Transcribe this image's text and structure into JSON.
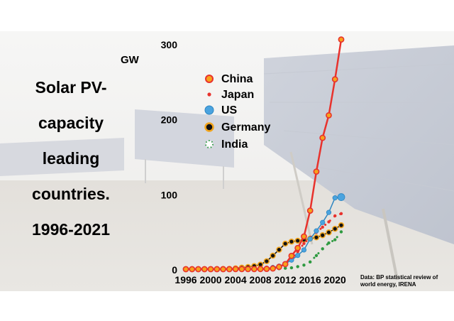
{
  "title_lines": [
    "Solar PV-",
    "capacity",
    "leading",
    "countries.",
    "1996-2021"
  ],
  "unit": "GW",
  "source": "Data:  BP statistical review of world energy, IRENA",
  "chart_data": {
    "type": "line",
    "title": "Solar PV-capacity leading countries. 1996-2021",
    "ylabel": "GW",
    "xlabel": "",
    "xlim": [
      1996,
      2021
    ],
    "ylim": [
      0,
      300
    ],
    "x_ticks": [
      "1996",
      "2000",
      "2004",
      "2008",
      "2012",
      "2016",
      "2020"
    ],
    "y_ticks": [
      "0",
      "100",
      "200",
      "300"
    ],
    "grid": false,
    "legend": "top-left",
    "x": [
      1996,
      1997,
      1998,
      1999,
      2000,
      2001,
      2002,
      2003,
      2004,
      2005,
      2006,
      2007,
      2008,
      2009,
      2010,
      2011,
      2012,
      2013,
      2014,
      2015,
      2016,
      2017,
      2018,
      2019,
      2020,
      2021
    ],
    "series": [
      {
        "name": "China",
        "color": "#e8322d",
        "fill": "#f7a21b",
        "values": [
          0,
          0,
          0,
          0,
          0,
          0,
          0,
          0,
          0.1,
          0.1,
          0.1,
          0.1,
          0.2,
          0.4,
          0.9,
          3,
          6.7,
          17.7,
          28.2,
          43.5,
          78,
          130,
          175,
          205,
          253,
          306
        ]
      },
      {
        "name": "Japan",
        "color": "#e8322d",
        "fill": "#ffffff",
        "values": [
          0.1,
          0.1,
          0.1,
          0.2,
          0.3,
          0.4,
          0.6,
          0.9,
          1.1,
          1.4,
          1.7,
          1.9,
          2.1,
          2.6,
          3.6,
          4.9,
          6.6,
          13.6,
          23.3,
          34.2,
          42,
          49,
          56,
          63,
          71,
          74
        ]
      },
      {
        "name": "US",
        "color": "#2e86c1",
        "fill": "#4aa3df",
        "values": [
          0,
          0,
          0,
          0,
          0,
          0,
          0,
          0.1,
          0.1,
          0.2,
          0.3,
          0.5,
          0.7,
          1.2,
          2.1,
          4,
          7.3,
          12.1,
          18.3,
          25.6,
          40.3,
          51,
          62.2,
          75.6,
          95,
          96
        ]
      },
      {
        "name": "Germany",
        "color": "#f2a41b",
        "fill": "#111111",
        "values": [
          0,
          0,
          0,
          0.1,
          0.1,
          0.2,
          0.3,
          0.4,
          1.1,
          2.1,
          2.9,
          4.2,
          6.1,
          10.6,
          18,
          25.9,
          34,
          36.7,
          37.9,
          39.2,
          40.7,
          42.3,
          45.2,
          49,
          53.8,
          58.5
        ]
      },
      {
        "name": "India",
        "color": "#2e9a40",
        "fill": "#ffffff",
        "values": [
          0,
          0,
          0,
          0,
          0,
          0,
          0,
          0,
          0,
          0,
          0,
          0,
          0,
          0,
          0.1,
          0.6,
          1.2,
          1.8,
          3.4,
          5.4,
          9.6,
          18.1,
          27.1,
          34.9,
          39.2,
          49.7
        ]
      }
    ]
  }
}
